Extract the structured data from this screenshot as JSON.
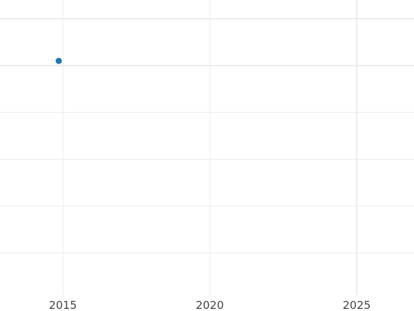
{
  "chart_data": {
    "type": "scatter",
    "title": "",
    "xlabel": "",
    "ylabel": "",
    "x_ticks": [
      "2015",
      "2020",
      "2025"
    ],
    "xlim": [
      2012.86,
      2026.95
    ],
    "ylim": [
      -0.9,
      5.4
    ],
    "y_gridlines": [
      0,
      1,
      2,
      3,
      4,
      5
    ],
    "grid": true,
    "points": [
      {
        "x": 2014.86,
        "y": 4.1
      }
    ],
    "colors": {
      "point": "#1f77b4",
      "grid": "#ebebeb"
    }
  }
}
